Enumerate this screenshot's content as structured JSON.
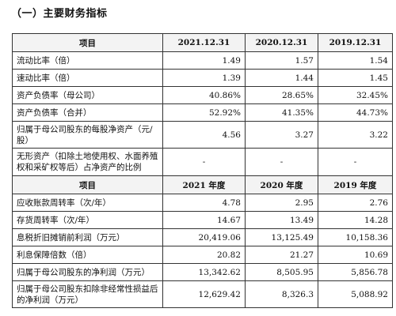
{
  "heading": "（一）主要财务指标",
  "section1": {
    "headers": [
      "项目",
      "2021.12.31",
      "2020.12.31",
      "2019.12.31"
    ],
    "rows": [
      {
        "label": "流动比率（倍）",
        "values": [
          "1.49",
          "1.57",
          "1.54"
        ]
      },
      {
        "label": "速动比率（倍）",
        "values": [
          "1.39",
          "1.44",
          "1.45"
        ]
      },
      {
        "label": "资产负债率（母公司）",
        "values": [
          "40.86%",
          "28.65%",
          "32.45%"
        ]
      },
      {
        "label": "资产负债率（合并）",
        "values": [
          "52.92%",
          "41.35%",
          "44.73%"
        ]
      },
      {
        "label": "归属于母公司股东的每股净资产（元/股）",
        "values": [
          "4.56",
          "3.27",
          "3.22"
        ]
      },
      {
        "label": "无形资产（扣除土地使用权、水面养殖权和采矿权等后）占净资产的比例",
        "values": [
          "-",
          "-",
          "-"
        ]
      }
    ]
  },
  "section2": {
    "headers": [
      "项目",
      "2021 年度",
      "2020 年度",
      "2019 年度"
    ],
    "rows": [
      {
        "label": "应收账款周转率（次/年）",
        "values": [
          "4.78",
          "2.95",
          "2.76"
        ]
      },
      {
        "label": "存货周转率（次/年）",
        "values": [
          "14.67",
          "13.49",
          "14.28"
        ]
      },
      {
        "label": "息税折旧摊销前利润（万元）",
        "values": [
          "20,419.06",
          "13,125.49",
          "10,158.36"
        ]
      },
      {
        "label": "利息保障倍数（倍）",
        "values": [
          "20.82",
          "21.27",
          "10.69"
        ]
      },
      {
        "label": "归属于母公司股东的净利润（万元）",
        "values": [
          "13,342.62",
          "8,505.95",
          "5,856.78"
        ]
      },
      {
        "label": "归属于母公司股东扣除非经常性损益后的净利润（万元）",
        "values": [
          "12,629.42",
          "8,326.3",
          "5,088.92"
        ]
      }
    ]
  }
}
